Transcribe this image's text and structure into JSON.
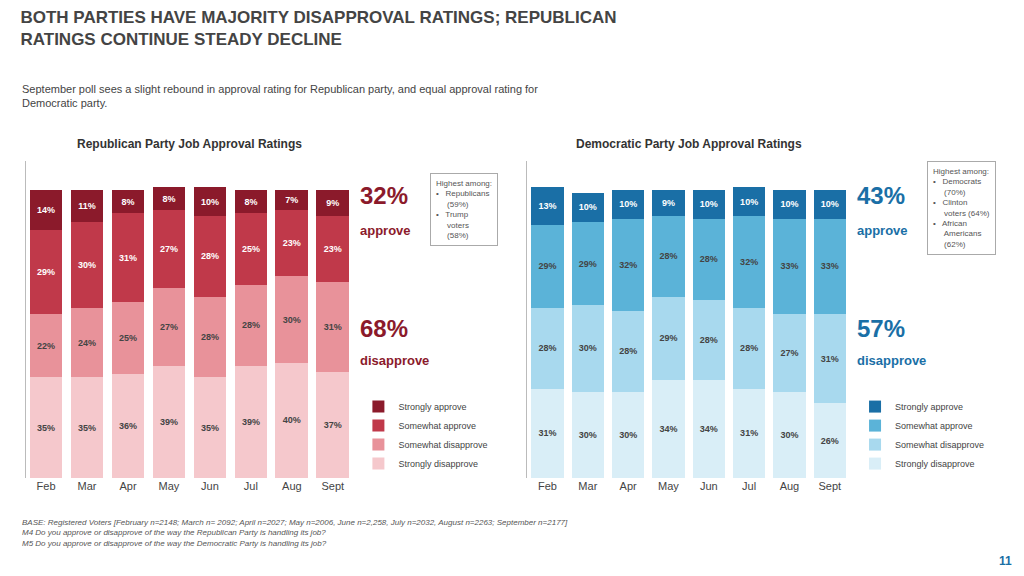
{
  "title": "BOTH PARTIES HAVE MAJORITY DISAPPROVAL RATINGS; REPUBLICAN\nRATINGS CONTINUE STEADY DECLINE",
  "subtitle": "September poll sees a slight rebound in approval rating for Republican party, and equal approval rating for\nDemocratic party.",
  "annotations": [
    "BASE: Registered Voters [February n=2148; March n= 2092; April n=2027; May n=2006, June n=2,258, July n=2032, August n=2263; September n=2177]\nM4 Do you approve or disapprove of the way the Republican Party is handling its job?\nM5 Do you approve or disapprove of the way the Democratic Party is handling its job?",
    "11"
  ],
  "chart_data": [
    {
      "type": "bar",
      "title": "Republican Party Job Approval Ratings",
      "stacked": true,
      "data_labels": true,
      "grid": false,
      "tick_labels": "x",
      "color": "#8B1A2B",
      "categories": [
        "Feb",
        "Mar",
        "Apr",
        "May",
        "Jun",
        "Jul",
        "Aug",
        "Sept"
      ],
      "ylim": [
        0,
        110
      ],
      "yticks": [],
      "series": [
        {
          "name": "Strongly disapprove",
          "color": "#F5C8CC",
          "values": [
            35,
            35,
            36,
            39,
            35,
            39,
            40,
            37
          ],
          "value_labels": [
            "35%",
            "35%",
            "36%",
            "39%",
            "35%",
            "39%",
            "40%",
            "37%"
          ]
        },
        {
          "name": "Somewhat disapprove",
          "color": "#E8929A",
          "values": [
            22,
            24,
            25,
            27,
            28,
            28,
            30,
            31
          ],
          "value_labels": [
            "22%",
            "24%",
            "25%",
            "27%",
            "28%",
            "28%",
            "30%",
            "31%"
          ]
        },
        {
          "name": "Somewhat approve",
          "color": "#C0394A",
          "values": [
            29,
            30,
            31,
            27,
            28,
            25,
            23,
            23
          ],
          "value_labels": [
            "29%",
            "30%",
            "31%",
            "27%",
            "28%",
            "25%",
            "23%",
            "23%"
          ]
        },
        {
          "name": "Strongly approve",
          "color": "#8B1A2B",
          "values": [
            14,
            11,
            8,
            8,
            10,
            8,
            7,
            9
          ],
          "value_labels": [
            "14%",
            "11%",
            "8%",
            "8%",
            "10%",
            "8%",
            "7%",
            "9%"
          ]
        }
      ],
      "annotations": [
        "32%",
        "approve",
        "68%",
        "disapprove",
        "Highest among:\n•   Republicans\n     (59%)\n•   Trump\n     voters\n     (58%)"
      ]
    },
    {
      "type": "bar",
      "title": "Democratic Party Job Approval Ratings",
      "stacked": true,
      "data_labels": true,
      "grid": false,
      "tick_labels": "x",
      "color": "#1A6FA6",
      "categories": [
        "Feb",
        "Mar",
        "Apr",
        "May",
        "Jun",
        "Jul",
        "Aug",
        "Sept"
      ],
      "ylim": [
        0,
        110
      ],
      "yticks": [],
      "series": [
        {
          "name": "Strongly disapprove",
          "color": "#D9EEF7",
          "values": [
            31,
            30,
            30,
            34,
            34,
            31,
            30,
            26
          ],
          "value_labels": [
            "31%",
            "30%",
            "30%",
            "34%",
            "34%",
            "31%",
            "30%",
            "26%"
          ]
        },
        {
          "name": "Somewhat disapprove",
          "color": "#A8D9EE",
          "values": [
            28,
            30,
            28,
            29,
            28,
            28,
            27,
            31
          ],
          "value_labels": [
            "28%",
            "30%",
            "28%",
            "29%",
            "28%",
            "28%",
            "27%",
            "31%"
          ]
        },
        {
          "name": "Somewhat approve",
          "color": "#5BB3D8",
          "values": [
            29,
            29,
            32,
            28,
            28,
            32,
            33,
            33
          ],
          "value_labels": [
            "29%",
            "29%",
            "32%",
            "28%",
            "28%",
            "32%",
            "33%",
            "33%"
          ]
        },
        {
          "name": "Strongly approve",
          "color": "#1A6FA6",
          "values": [
            13,
            10,
            10,
            9,
            10,
            10,
            10,
            10
          ],
          "value_labels": [
            "13%",
            "10%",
            "10%",
            "9%",
            "10%",
            "10%",
            "10%",
            "10%"
          ]
        }
      ],
      "annotations": [
        "43%",
        "approve",
        "57%",
        "disapprove",
        "Highest among:\n•   Democrats\n     (70%)\n•   Clinton\n     voters (64%)\n•   African\n     Americans\n     (62%)"
      ]
    }
  ]
}
